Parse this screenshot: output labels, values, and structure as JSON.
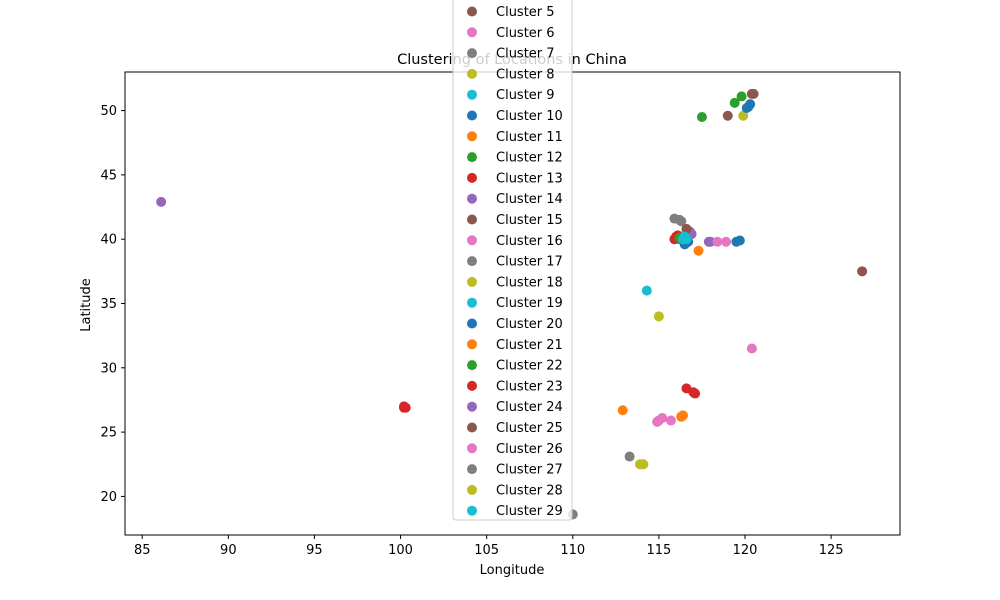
{
  "chart_data": {
    "type": "scatter",
    "title": "Clustering of Locations in China",
    "xlabel": "Longitude",
    "ylabel": "Latitude",
    "xlim": [
      84.0,
      129.0
    ],
    "ylim": [
      17.0,
      53.0
    ],
    "xticks": [
      85,
      90,
      95,
      100,
      105,
      110,
      115,
      120,
      125
    ],
    "yticks": [
      20,
      25,
      30,
      35,
      40,
      45,
      50
    ],
    "grid": false,
    "legend_placement": "top-center",
    "legend_entries": [
      "Cluster 5",
      "Cluster 6",
      "Cluster 7",
      "Cluster 8",
      "Cluster 9",
      "Cluster 10",
      "Cluster 11",
      "Cluster 12",
      "Cluster 13",
      "Cluster 14",
      "Cluster 15",
      "Cluster 16",
      "Cluster 17",
      "Cluster 18",
      "Cluster 19",
      "Cluster 20",
      "Cluster 21",
      "Cluster 22",
      "Cluster 23",
      "Cluster 24",
      "Cluster 25",
      "Cluster 26",
      "Cluster 27",
      "Cluster 28",
      "Cluster 29"
    ],
    "series": [
      {
        "name": "Cluster 5",
        "color": "#8c564b",
        "points": [
          [
            119.0,
            49.6
          ]
        ]
      },
      {
        "name": "Cluster 6",
        "color": "#e377c2",
        "points": [
          [
            118.9,
            39.8
          ]
        ]
      },
      {
        "name": "Cluster 7",
        "color": "#7f7f7f",
        "points": [
          [
            110.0,
            18.6
          ]
        ]
      },
      {
        "name": "Cluster 8",
        "color": "#bcbd22",
        "points": [
          [
            119.9,
            49.6
          ]
        ]
      },
      {
        "name": "Cluster 9",
        "color": "#17becf",
        "points": [
          [
            116.6,
            40.1
          ]
        ]
      },
      {
        "name": "Cluster 10",
        "color": "#1f77b4",
        "points": [
          [
            120.1,
            50.2
          ],
          [
            120.3,
            50.5
          ],
          [
            120.2,
            50.3
          ],
          [
            119.5,
            39.8
          ],
          [
            119.7,
            39.9
          ],
          [
            116.5,
            39.6
          ],
          [
            116.7,
            39.8
          ]
        ]
      },
      {
        "name": "Cluster 11",
        "color": "#ff7f0e",
        "points": [
          [
            117.3,
            39.1
          ],
          [
            116.3,
            26.2
          ],
          [
            116.4,
            26.3
          ],
          [
            112.9,
            26.7
          ]
        ]
      },
      {
        "name": "Cluster 12",
        "color": "#2ca02c",
        "points": [
          [
            117.5,
            49.5
          ],
          [
            119.4,
            50.6
          ],
          [
            119.8,
            51.1
          ]
        ]
      },
      {
        "name": "Cluster 13",
        "color": "#d62728",
        "points": [
          [
            116.0,
            40.2
          ],
          [
            115.9,
            40.0
          ],
          [
            116.2,
            40.0
          ],
          [
            116.1,
            40.3
          ],
          [
            116.6,
            28.4
          ],
          [
            117.0,
            28.1
          ],
          [
            117.1,
            28.0
          ],
          [
            100.2,
            26.9
          ],
          [
            100.2,
            27.0
          ]
        ]
      },
      {
        "name": "Cluster 14",
        "color": "#9467bd",
        "points": [
          [
            86.1,
            42.9
          ],
          [
            116.9,
            40.4
          ],
          [
            116.8,
            40.6
          ],
          [
            117.9,
            39.8
          ],
          [
            118.0,
            39.8
          ]
        ]
      },
      {
        "name": "Cluster 15",
        "color": "#8c564b",
        "points": [
          [
            120.4,
            51.3
          ],
          [
            120.5,
            51.3
          ],
          [
            126.8,
            37.5
          ]
        ]
      },
      {
        "name": "Cluster 16",
        "color": "#e377c2",
        "points": [
          [
            118.4,
            39.8
          ],
          [
            120.4,
            31.5
          ],
          [
            114.9,
            25.8
          ],
          [
            115.2,
            26.1
          ],
          [
            115.7,
            25.9
          ]
        ]
      },
      {
        "name": "Cluster 17",
        "color": "#7f7f7f",
        "points": [
          [
            115.9,
            41.6
          ],
          [
            116.3,
            41.4
          ],
          [
            113.3,
            23.1
          ]
        ]
      },
      {
        "name": "Cluster 18",
        "color": "#bcbd22",
        "points": [
          [
            115.0,
            34.0
          ],
          [
            114.0,
            22.5
          ],
          [
            113.9,
            22.5
          ]
        ]
      },
      {
        "name": "Cluster 19",
        "color": "#17becf",
        "points": [
          [
            114.3,
            36.0
          ],
          [
            116.3,
            40.0
          ],
          [
            116.4,
            39.9
          ]
        ]
      },
      {
        "name": "Cluster 20",
        "color": "#1f77b4",
        "points": [
          [
            116.5,
            39.7
          ]
        ]
      },
      {
        "name": "Cluster 21",
        "color": "#ff7f0e",
        "points": [
          [
            116.3,
            26.2
          ]
        ]
      },
      {
        "name": "Cluster 22",
        "color": "#2ca02c",
        "points": [
          [
            116.2,
            40.1
          ]
        ]
      },
      {
        "name": "Cluster 23",
        "color": "#d62728",
        "points": [
          [
            100.3,
            26.9
          ]
        ]
      },
      {
        "name": "Cluster 24",
        "color": "#9467bd",
        "points": [
          [
            116.7,
            40.5
          ]
        ]
      },
      {
        "name": "Cluster 25",
        "color": "#8c564b",
        "points": [
          [
            116.6,
            40.8
          ]
        ]
      },
      {
        "name": "Cluster 26",
        "color": "#e377c2",
        "points": [
          [
            115.0,
            25.9
          ]
        ]
      },
      {
        "name": "Cluster 27",
        "color": "#7f7f7f",
        "points": [
          [
            116.2,
            41.5
          ]
        ]
      },
      {
        "name": "Cluster 28",
        "color": "#bcbd22",
        "points": [
          [
            114.1,
            22.5
          ]
        ]
      },
      {
        "name": "Cluster 29",
        "color": "#17becf",
        "points": [
          [
            116.4,
            40.0
          ],
          [
            116.5,
            40.2
          ],
          [
            116.6,
            40.0
          ]
        ]
      }
    ]
  }
}
